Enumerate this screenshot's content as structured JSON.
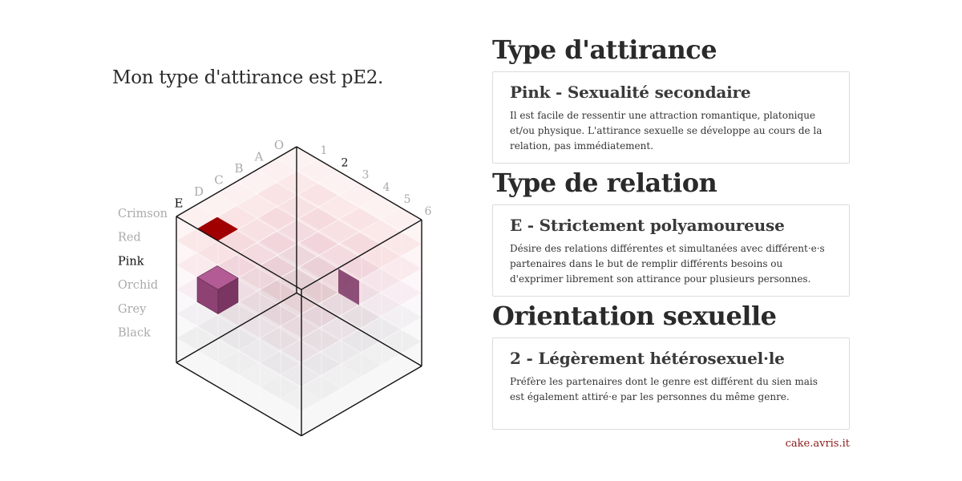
{
  "headline": "Mon type d'attirance est pE2.",
  "cube": {
    "letters": [
      "O",
      "A",
      "B",
      "C",
      "D",
      "E"
    ],
    "numbers": [
      "1",
      "2",
      "3",
      "4",
      "5",
      "6"
    ],
    "colors": [
      "Crimson",
      "Red",
      "Pink",
      "Orchid",
      "Grey",
      "Black"
    ],
    "selected": {
      "letter": "E",
      "number": "2",
      "color": "Pink"
    },
    "layer_tints": [
      "#e57373",
      "#e8848a",
      "#e39ab0",
      "#cda2c9",
      "#b3b3b3",
      "#9a9a9a"
    ],
    "marker_color": "#a00000",
    "block_colors": {
      "top": "#b25b94",
      "left": "#8e4273",
      "right": "#7a3563"
    }
  },
  "sections": [
    {
      "heading": "Type d'attirance",
      "card_title": "Pink - Sexualité secondaire",
      "card_text": "Il est facile de ressentir une attraction romantique, platonique et/ou physique. L'attirance sexuelle se développe au cours de la relation, pas immédiatement."
    },
    {
      "heading": "Type de relation",
      "card_title": "E - Strictement polyamoureuse",
      "card_text": "Désire des relations différentes et simultanées avec différent·e·s partenaires dans le but de remplir différents besoins ou d'exprimer librement son attirance pour plusieurs personnes."
    },
    {
      "heading": "Orientation sexuelle",
      "card_title": "2 - Légèrement hétérosexuel·le",
      "card_text": "Préfère les partenaires dont le genre est différent du sien mais est également attiré·e par les personnes du même genre."
    }
  ],
  "footer": "cake.avris.it"
}
